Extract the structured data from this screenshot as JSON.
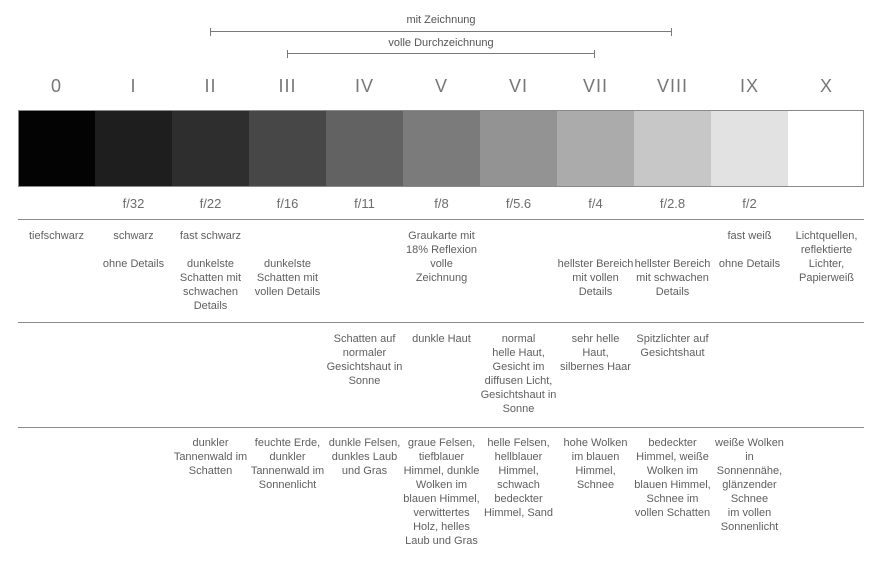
{
  "ranges": {
    "with_drawing": "mit Zeichnung",
    "full_drawing": "volle Durchzeichnung"
  },
  "zones": [
    {
      "numeral": "0",
      "fstop": "",
      "gray": "#030303",
      "row1": "tiefschwarz",
      "row2": "",
      "row3": ""
    },
    {
      "numeral": "I",
      "fstop": "f/32",
      "gray": "#1e1e1e",
      "row1": "schwarz\n\nohne Details",
      "row2": "",
      "row3": ""
    },
    {
      "numeral": "II",
      "fstop": "f/22",
      "gray": "#2e2e2e",
      "row1": "fast schwarz\n\ndunkelste\nSchatten mit\nschwachen\nDetails",
      "row2": "",
      "row3": "dunkler\nTannenwald im\nSchatten"
    },
    {
      "numeral": "III",
      "fstop": "f/16",
      "gray": "#474747",
      "row1": "\n\ndunkelste\nSchatten mit\nvollen Details",
      "row2": "",
      "row3": "feuchte Erde,\ndunkler\nTannenwald im\nSonnenlicht"
    },
    {
      "numeral": "IV",
      "fstop": "f/11",
      "gray": "#626262",
      "row1": "",
      "row2": "Schatten auf\nnormaler\nGesichtshaut in\nSonne",
      "row3": "dunkle Felsen,\ndunkles Laub\nund Gras"
    },
    {
      "numeral": "V",
      "fstop": "f/8",
      "gray": "#7b7b7b",
      "row1": "Graukarte mit\n18% Reflexion\nvolle Zeichnung",
      "row2": "dunkle Haut",
      "row3": "graue Felsen,\ntiefblauer\nHimmel, dunkle\nWolken im\nblauen Himmel,\nverwittertes\nHolz, helles\nLaub und Gras"
    },
    {
      "numeral": "VI",
      "fstop": "f/5.6",
      "gray": "#939393",
      "row1": "",
      "row2": "normal\nhelle Haut,\nGesicht im\ndiffusen Licht,\nGesichtshaut in\nSonne",
      "row3": "helle Felsen,\nhellblauer\nHimmel,\nschwach\nbedeckter\nHimmel, Sand"
    },
    {
      "numeral": "VII",
      "fstop": "f/4",
      "gray": "#ababab",
      "row1": "\n\nhellster Bereich\nmit vollen\nDetails",
      "row2": "sehr helle Haut,\nsilbernes Haar",
      "row3": "hohe Wolken\nim blauen\nHimmel,\nSchnee"
    },
    {
      "numeral": "VIII",
      "fstop": "f/2.8",
      "gray": "#c7c7c7",
      "row1": "\n\nhellster Bereich\nmit schwachen\nDetails",
      "row2": "Spitzlichter auf\nGesichtshaut",
      "row3": "bedeckter\nHimmel, weiße\nWolken im\nblauen Himmel,\nSchnee im\nvollen Schatten"
    },
    {
      "numeral": "IX",
      "fstop": "f/2",
      "gray": "#e2e2e2",
      "row1": "fast weiß\n\nohne Details",
      "row2": "",
      "row3": "weiße Wolken\nin Sonnennähe,\nglänzender\nSchnee\nim vollen\nSonnenlicht"
    },
    {
      "numeral": "X",
      "fstop": "",
      "gray": "#ffffff",
      "row1": "Lichtquellen,\nreflektierte\nLichter,\nPapierweiß",
      "row2": "",
      "row3": ""
    }
  ]
}
